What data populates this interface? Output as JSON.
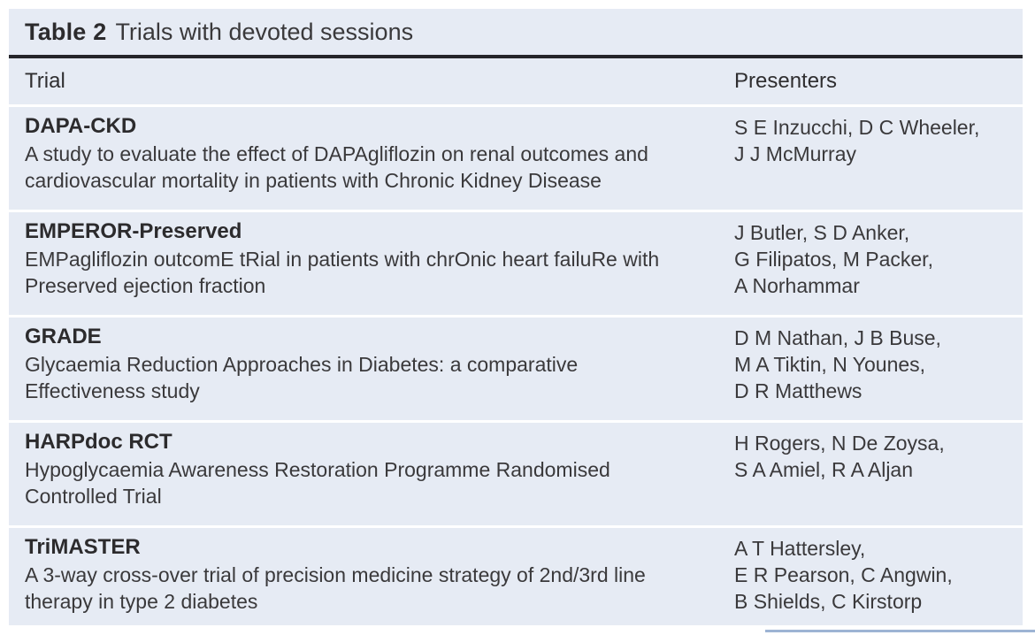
{
  "colors": {
    "panel_bg": "#e6ebf4",
    "dark_rule": "#25252a",
    "row_separator": "#ffffff",
    "text": "#3a393b",
    "partial_rule_blue": "#9db4d4"
  },
  "table": {
    "title_label": "Table 2",
    "title_text": "Trials with devoted sessions",
    "columns": {
      "trial": "Trial",
      "presenters": "Presenters"
    },
    "rows": [
      {
        "trial_name": "DAPA-CKD",
        "trial_description": "A study to evaluate the effect of DAPAgliflozin on renal outcomes and\ncardiovascular mortality in patients with Chronic Kidney Disease",
        "presenters": "S E Inzucchi, D C Wheeler,\nJ J McMurray"
      },
      {
        "trial_name": "EMPEROR-Preserved",
        "trial_description": "EMPagliflozin outcomE tRial in patients with chrOnic heart failuRe with\nPreserved ejection fraction",
        "presenters": "J Butler, S D Anker,\nG Filipatos, M Packer,\nA Norhammar"
      },
      {
        "trial_name": "GRADE",
        "trial_description": "Glycaemia Reduction Approaches in Diabetes: a comparative\nEffectiveness study",
        "presenters": "D M Nathan, J B Buse,\nM A Tiktin, N Younes,\nD R Matthews"
      },
      {
        "trial_name": "HARPdoc RCT",
        "trial_description": "Hypoglycaemia Awareness Restoration Programme Randomised\nControlled Trial",
        "presenters": "H Rogers, N De Zoysa,\nS A Amiel, R A Aljan"
      },
      {
        "trial_name": "TriMASTER",
        "trial_description": "A 3-way cross-over trial of precision medicine strategy of 2nd/3rd line\ntherapy in type 2 diabetes",
        "presenters": "A T Hattersley,\nE R Pearson, C Angwin,\nB Shields, C Kirstorp"
      }
    ]
  }
}
